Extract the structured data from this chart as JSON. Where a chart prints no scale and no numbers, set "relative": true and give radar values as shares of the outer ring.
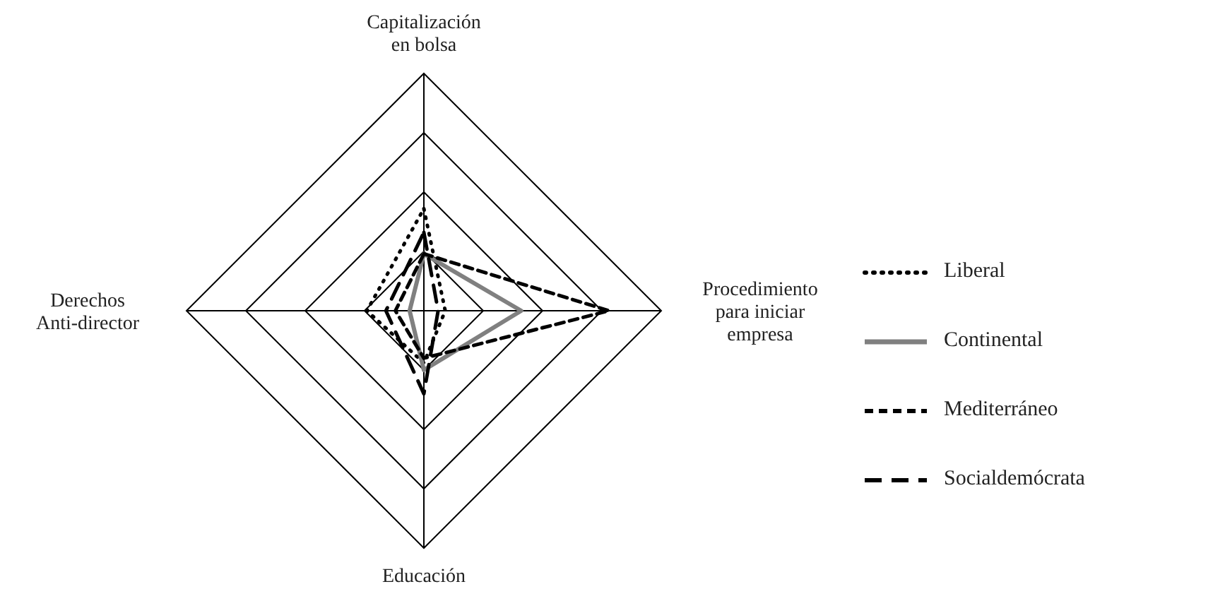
{
  "chart_data": {
    "type": "radar",
    "relative": true,
    "categories": [
      "Capitalización en bolsa",
      "Procedimiento para iniciar empresa",
      "Educación",
      "Derechos Anti-director"
    ],
    "legend": "right",
    "series": [
      {
        "name": "Liberal",
        "color": "#000000",
        "line_style": "dotted",
        "values": [
          0.43,
          0.09,
          0.22,
          0.24
        ]
      },
      {
        "name": "Continental",
        "color": "#808080",
        "line_style": "solid",
        "values": [
          0.24,
          0.41,
          0.25,
          0.06
        ]
      },
      {
        "name": "Mediterráneo",
        "color": "#000000",
        "line_style": "dashed",
        "values": [
          0.24,
          0.78,
          0.2,
          0.12
        ]
      },
      {
        "name": "Socialdemócrata",
        "color": "#000000",
        "line_style": "dashed",
        "values": [
          0.33,
          0.06,
          0.35,
          0.16
        ]
      }
    ]
  }
}
